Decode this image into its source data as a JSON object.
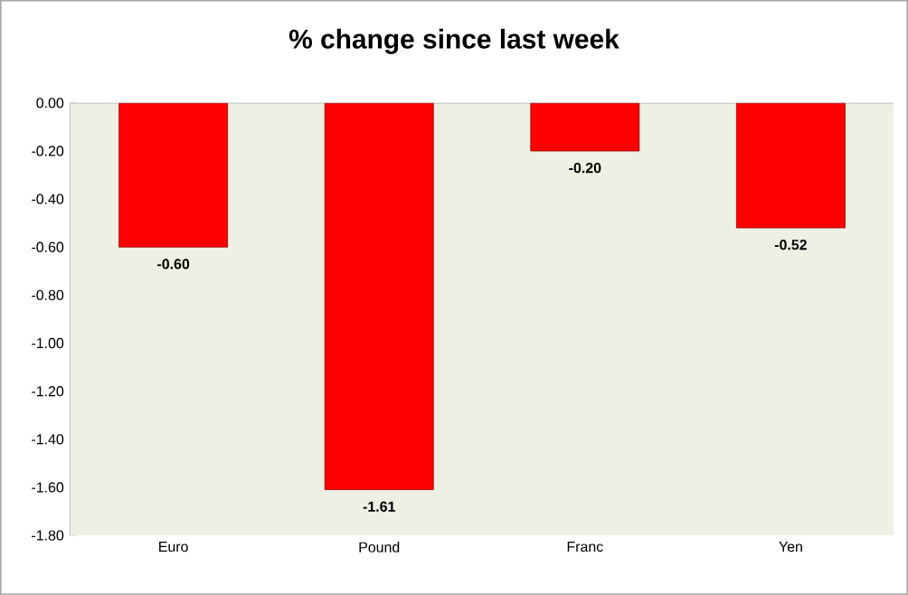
{
  "chart_data": {
    "type": "bar",
    "title": "% change since last week",
    "categories": [
      "Euro",
      "Pound",
      "Franc",
      "Yen"
    ],
    "values": [
      -0.6,
      -1.61,
      -0.2,
      -0.52
    ],
    "value_labels": [
      "-0.60",
      "-1.61",
      "-0.20",
      "-0.52"
    ],
    "color": "#ff0000",
    "ylim": [
      -1.8,
      0
    ],
    "yticks": [
      {
        "value": 0,
        "label": "0.00"
      },
      {
        "value": -0.2,
        "label": "-0.20"
      },
      {
        "value": -0.4,
        "label": "-0.40"
      },
      {
        "value": -0.6,
        "label": "-0.60"
      },
      {
        "value": -0.8,
        "label": "-0.80"
      },
      {
        "value": -1.0,
        "label": "-1.00"
      },
      {
        "value": -1.2,
        "label": "-1.20"
      },
      {
        "value": -1.4,
        "label": "-1.40"
      },
      {
        "value": -1.6,
        "label": "-1.60"
      },
      {
        "value": -1.8,
        "label": "-1.80"
      }
    ],
    "grid": false
  }
}
